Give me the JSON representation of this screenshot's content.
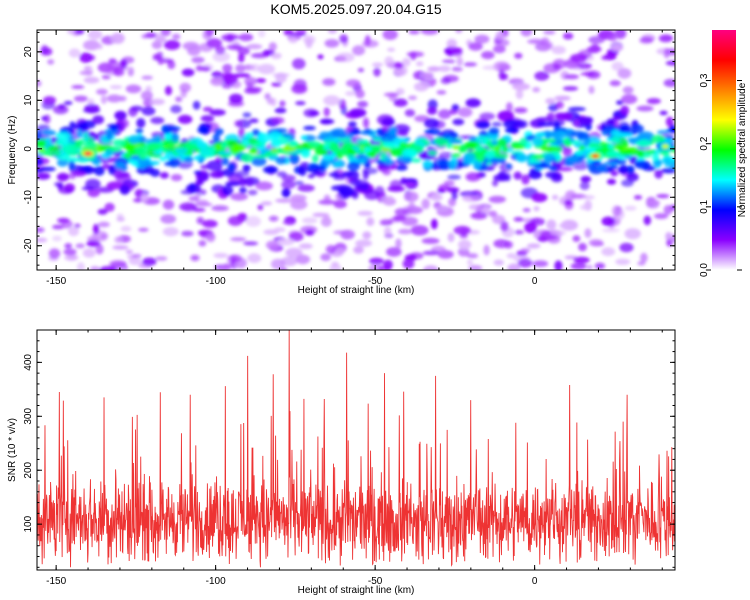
{
  "title": "KOM5.2025.097.20.04.G15",
  "chart_data": [
    {
      "type": "heatmap",
      "title": "KOM5.2025.097.20.04.G15",
      "xlabel": "Height of straight line (km)",
      "ylabel": "Frequency (Hz)",
      "xlim": [
        -156,
        44
      ],
      "ylim": [
        -25,
        24.5
      ],
      "x_ticks": [
        -150,
        -100,
        -50,
        0
      ],
      "x_tick_labels": [
        "-150",
        "-100",
        "-50",
        "0"
      ],
      "y_ticks": [
        -20,
        -10,
        0,
        10,
        20
      ],
      "y_tick_labels": [
        "-20",
        "-10",
        "0",
        "10",
        "20"
      ],
      "band_center_hz": 0,
      "band_halfwidth_hz": 6,
      "colorbar": {
        "label": "Normalized spectral amplitude",
        "range": [
          0.0,
          0.38
        ],
        "ticks": [
          0.0,
          0.1,
          0.2,
          0.3
        ],
        "tick_labels": [
          "0.0",
          "0.1",
          "0.2",
          "0.3"
        ],
        "colormap": [
          "#ffffff",
          "#8a00ff",
          "#0000ff",
          "#00ffff",
          "#00ff00",
          "#ffff00",
          "#ff8000",
          "#ff0000",
          "#ff0080"
        ]
      },
      "peaks": [
        {
          "x": -140,
          "y": -1,
          "value": 0.37
        },
        {
          "x": 19,
          "y": -1.5,
          "value": 0.34
        },
        {
          "x": 41,
          "y": 0.5,
          "value": 0.24
        }
      ]
    },
    {
      "type": "line",
      "xlabel": "Height of straight line (km)",
      "ylabel": "SNR (10 * v/v)",
      "xlim": [
        -156,
        44
      ],
      "ylim": [
        15,
        460
      ],
      "x_ticks": [
        -150,
        -100,
        -50,
        0
      ],
      "x_tick_labels": [
        "-150",
        "-100",
        "-50",
        "0"
      ],
      "y_ticks": [
        100,
        200,
        300,
        400
      ],
      "y_tick_labels": [
        "100",
        "200",
        "300",
        "400"
      ],
      "color": "#ee3333",
      "baseline_snr": 110,
      "spikes": [
        {
          "x": -77,
          "y": 460
        },
        {
          "x": -59,
          "y": 418
        },
        {
          "x": -90,
          "y": 412
        },
        {
          "x": -47,
          "y": 380
        },
        {
          "x": -82,
          "y": 378
        },
        {
          "x": -31,
          "y": 375
        },
        {
          "x": -149,
          "y": 345
        },
        {
          "x": -97,
          "y": 356
        },
        {
          "x": -135,
          "y": 335
        },
        {
          "x": 29,
          "y": 340
        },
        {
          "x": 11,
          "y": 358
        },
        {
          "x": -108,
          "y": 340
        },
        {
          "x": -20,
          "y": 330
        },
        {
          "x": -66,
          "y": 332
        }
      ]
    }
  ]
}
